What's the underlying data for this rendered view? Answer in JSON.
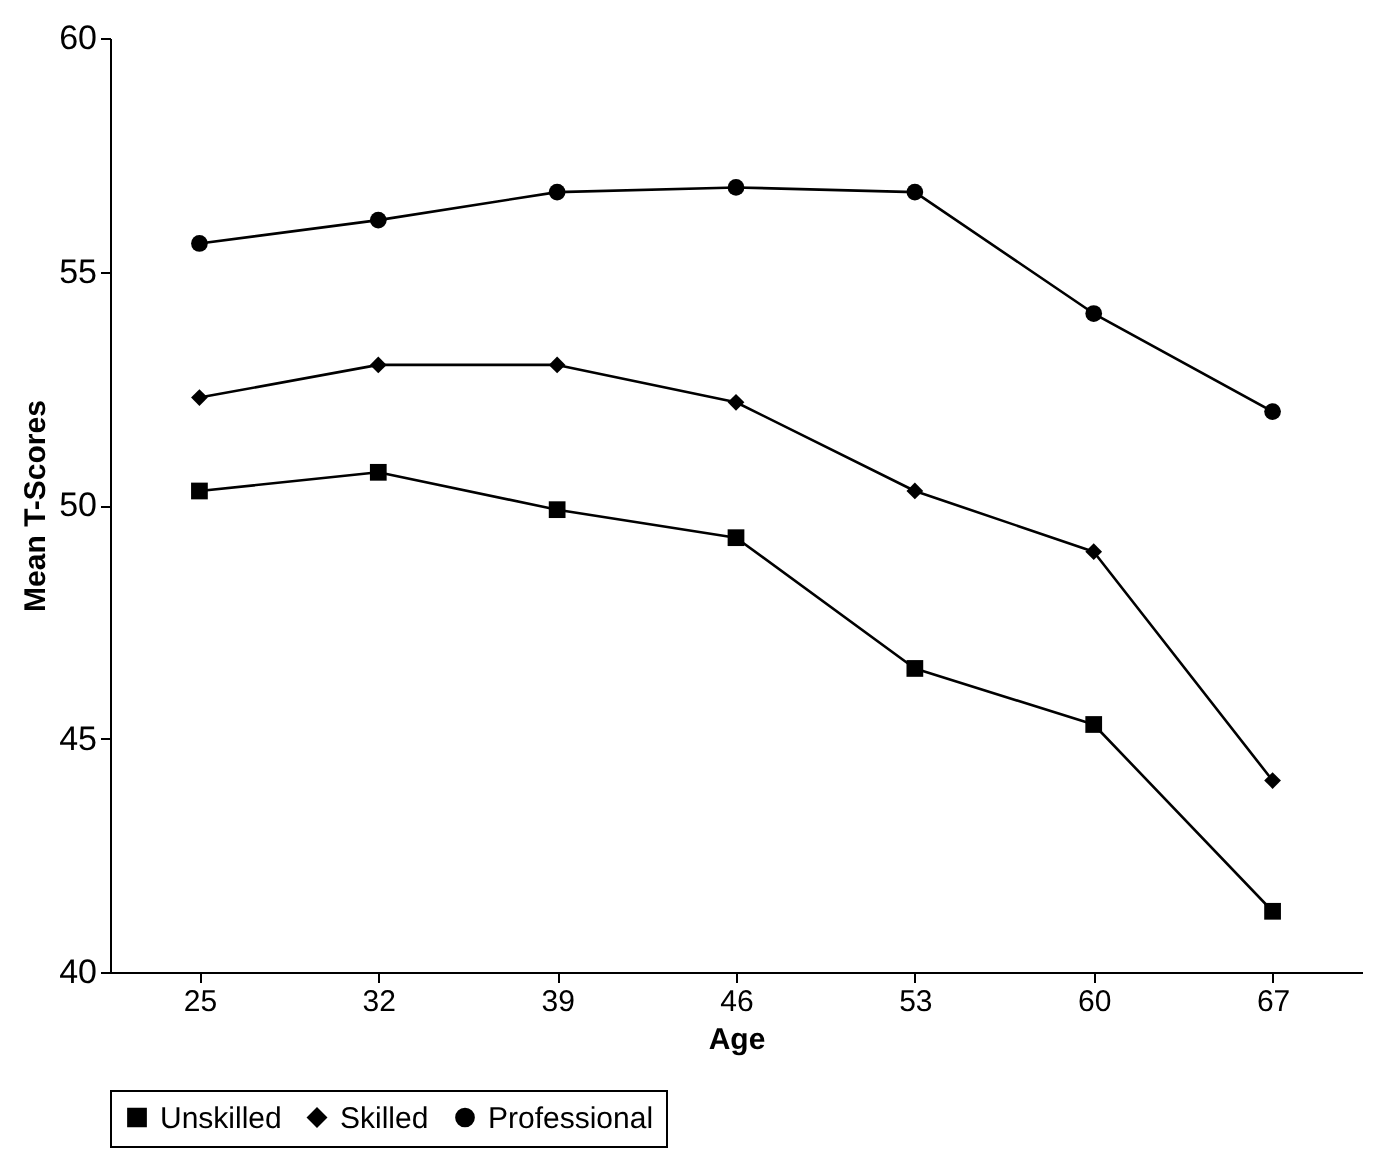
{
  "chart_data": {
    "type": "line",
    "xlabel": "Age",
    "ylabel": "Mean T-Scores",
    "categories": [
      "25",
      "32",
      "39",
      "46",
      "53",
      "60",
      "67"
    ],
    "ylim": [
      40,
      60
    ],
    "yticks": [
      40,
      45,
      50,
      55,
      60
    ],
    "grid": false,
    "legend": "bottom",
    "line_style": "solid",
    "series": [
      {
        "name": "Unskilled",
        "color": "#000000",
        "marker": "square",
        "values": [
          50.3,
          50.7,
          49.9,
          49.3,
          46.5,
          45.3,
          41.3
        ]
      },
      {
        "name": "Skilled",
        "color": "#000000",
        "marker": "diamond",
        "values": [
          52.3,
          53.0,
          53.0,
          52.2,
          50.3,
          49.0,
          44.1
        ]
      },
      {
        "name": "Professional",
        "color": "#000000",
        "marker": "circle",
        "values": [
          55.6,
          56.1,
          56.7,
          56.8,
          56.7,
          54.1,
          52.0
        ]
      }
    ]
  }
}
